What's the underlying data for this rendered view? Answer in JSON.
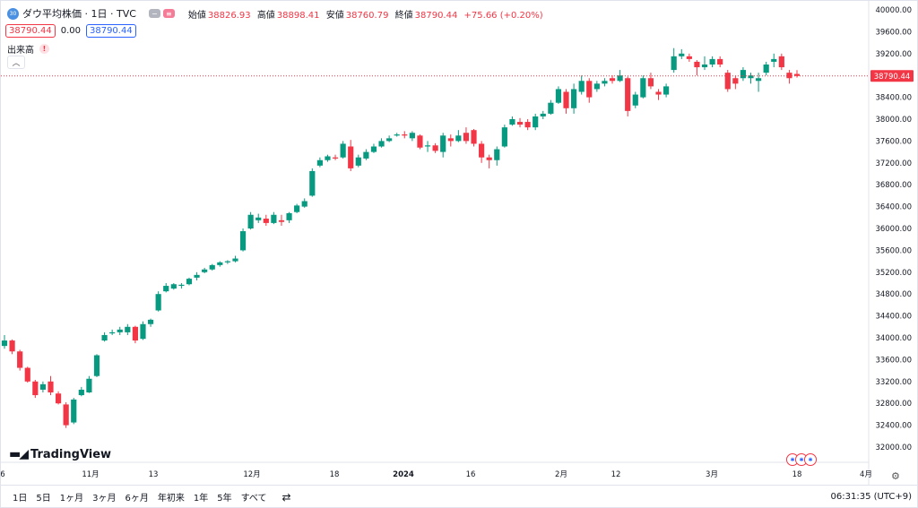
{
  "legend": {
    "symbol_badge": "30",
    "title": "ダウ平均株価 · 1日 · TVC",
    "ohlc": [
      {
        "label": "始値",
        "value": "38826.93"
      },
      {
        "label": "高値",
        "value": "38898.41"
      },
      {
        "label": "安値",
        "value": "38760.79"
      },
      {
        "label": "終値",
        "value": "38790.44"
      }
    ],
    "change": "+75.66 (+0.20%)",
    "sell_price": "38790.44",
    "spread": "0.00",
    "buy_price": "38790.44",
    "volume_label": "出来高",
    "volume_warning": "!"
  },
  "logo": {
    "text": "TradingView"
  },
  "price_axis": {
    "labels": [
      "40000.00",
      "39600.00",
      "39200.00",
      "38800.00",
      "38400.00",
      "38000.00",
      "37600.00",
      "37200.00",
      "36800.00",
      "36400.00",
      "36000.00",
      "35600.00",
      "35200.00",
      "34800.00",
      "34400.00",
      "34000.00",
      "33600.00",
      "33200.00",
      "32800.00",
      "32400.00",
      "32000.00"
    ],
    "last_price_label": "38790.44"
  },
  "time_axis": {
    "labels": [
      {
        "text": "6",
        "bold": false
      },
      {
        "text": "11月",
        "bold": false
      },
      {
        "text": "13",
        "bold": false
      },
      {
        "text": "12月",
        "bold": false
      },
      {
        "text": "18",
        "bold": false
      },
      {
        "text": "2024",
        "bold": true
      },
      {
        "text": "16",
        "bold": false
      },
      {
        "text": "2月",
        "bold": false
      },
      {
        "text": "12",
        "bold": false
      },
      {
        "text": "3月",
        "bold": false
      },
      {
        "text": "18",
        "bold": false
      },
      {
        "text": "4月",
        "bold": false
      }
    ]
  },
  "bottom_bar": {
    "ranges": [
      "1日",
      "5日",
      "1ヶ月",
      "3ヶ月",
      "6ヶ月",
      "年初来",
      "1年",
      "5年",
      "すべて"
    ],
    "clock": "06:31:35 (UTC+9)"
  },
  "colors": {
    "up": "#089981",
    "down": "#f23645",
    "price_line": "#f23645"
  },
  "chart_data": {
    "type": "candlestick",
    "title": "ダウ平均株価 · 1日 · TVC",
    "ylim": [
      31900,
      40100
    ],
    "y_ticks": [
      32000,
      32400,
      32800,
      33200,
      33600,
      34000,
      34400,
      34800,
      35200,
      35600,
      36000,
      36400,
      36800,
      37200,
      37600,
      38000,
      38400,
      38800,
      39200,
      39600,
      40000
    ],
    "last_price": 38790.44,
    "grid": false,
    "candles": [
      {
        "o": 33850,
        "h": 34050,
        "l": 33800,
        "c": 33950
      },
      {
        "o": 33950,
        "h": 33970,
        "l": 33700,
        "c": 33750
      },
      {
        "o": 33750,
        "h": 33780,
        "l": 33400,
        "c": 33450
      },
      {
        "o": 33450,
        "h": 33470,
        "l": 33180,
        "c": 33200
      },
      {
        "o": 33200,
        "h": 33230,
        "l": 32900,
        "c": 32950
      },
      {
        "o": 33050,
        "h": 33200,
        "l": 33000,
        "c": 33150
      },
      {
        "o": 33200,
        "h": 33300,
        "l": 32950,
        "c": 33000
      },
      {
        "o": 32980,
        "h": 33020,
        "l": 32780,
        "c": 32800
      },
      {
        "o": 32780,
        "h": 32820,
        "l": 32350,
        "c": 32400
      },
      {
        "o": 32450,
        "h": 32900,
        "l": 32420,
        "c": 32870
      },
      {
        "o": 32950,
        "h": 33100,
        "l": 32930,
        "c": 33050
      },
      {
        "o": 33000,
        "h": 33300,
        "l": 32990,
        "c": 33250
      },
      {
        "o": 33300,
        "h": 33700,
        "l": 33280,
        "c": 33680
      },
      {
        "o": 33950,
        "h": 34100,
        "l": 33930,
        "c": 34050
      },
      {
        "o": 34080,
        "h": 34150,
        "l": 34050,
        "c": 34100
      },
      {
        "o": 34100,
        "h": 34200,
        "l": 34050,
        "c": 34150
      },
      {
        "o": 34100,
        "h": 34250,
        "l": 34050,
        "c": 34200
      },
      {
        "o": 34200,
        "h": 34220,
        "l": 33900,
        "c": 33950
      },
      {
        "o": 33980,
        "h": 34300,
        "l": 33960,
        "c": 34250
      },
      {
        "o": 34250,
        "h": 34350,
        "l": 34200,
        "c": 34330
      },
      {
        "o": 34500,
        "h": 34850,
        "l": 34480,
        "c": 34800
      },
      {
        "o": 34850,
        "h": 35000,
        "l": 34830,
        "c": 34950
      },
      {
        "o": 34900,
        "h": 35000,
        "l": 34880,
        "c": 34980
      },
      {
        "o": 34950,
        "h": 35000,
        "l": 34900,
        "c": 34970
      },
      {
        "o": 34980,
        "h": 35100,
        "l": 34960,
        "c": 35080
      },
      {
        "o": 35100,
        "h": 35200,
        "l": 35050,
        "c": 35150
      },
      {
        "o": 35200,
        "h": 35280,
        "l": 35180,
        "c": 35250
      },
      {
        "o": 35250,
        "h": 35350,
        "l": 35230,
        "c": 35330
      },
      {
        "o": 35330,
        "h": 35400,
        "l": 35300,
        "c": 35380
      },
      {
        "o": 35380,
        "h": 35420,
        "l": 35350,
        "c": 35400
      },
      {
        "o": 35400,
        "h": 35500,
        "l": 35380,
        "c": 35450
      },
      {
        "o": 35600,
        "h": 36000,
        "l": 35580,
        "c": 35950
      },
      {
        "o": 36000,
        "h": 36300,
        "l": 35980,
        "c": 36250
      },
      {
        "o": 36150,
        "h": 36270,
        "l": 36100,
        "c": 36200
      },
      {
        "o": 36180,
        "h": 36250,
        "l": 36050,
        "c": 36100
      },
      {
        "o": 36100,
        "h": 36300,
        "l": 36080,
        "c": 36250
      },
      {
        "o": 36150,
        "h": 36250,
        "l": 36050,
        "c": 36120
      },
      {
        "o": 36150,
        "h": 36300,
        "l": 36100,
        "c": 36280
      },
      {
        "o": 36300,
        "h": 36450,
        "l": 36280,
        "c": 36420
      },
      {
        "o": 36400,
        "h": 36550,
        "l": 36380,
        "c": 36500
      },
      {
        "o": 36600,
        "h": 37100,
        "l": 36580,
        "c": 37050
      },
      {
        "o": 37150,
        "h": 37300,
        "l": 37120,
        "c": 37250
      },
      {
        "o": 37250,
        "h": 37350,
        "l": 37220,
        "c": 37320
      },
      {
        "o": 37300,
        "h": 37350,
        "l": 37250,
        "c": 37280
      },
      {
        "o": 37300,
        "h": 37600,
        "l": 37280,
        "c": 37550
      },
      {
        "o": 37500,
        "h": 37620,
        "l": 37050,
        "c": 37100
      },
      {
        "o": 37150,
        "h": 37350,
        "l": 37120,
        "c": 37300
      },
      {
        "o": 37280,
        "h": 37450,
        "l": 37250,
        "c": 37400
      },
      {
        "o": 37400,
        "h": 37550,
        "l": 37380,
        "c": 37500
      },
      {
        "o": 37500,
        "h": 37650,
        "l": 37480,
        "c": 37600
      },
      {
        "o": 37600,
        "h": 37700,
        "l": 37580,
        "c": 37650
      },
      {
        "o": 37700,
        "h": 37750,
        "l": 37680,
        "c": 37720
      },
      {
        "o": 37720,
        "h": 37780,
        "l": 37650,
        "c": 37700
      },
      {
        "o": 37650,
        "h": 37780,
        "l": 37600,
        "c": 37750
      },
      {
        "o": 37700,
        "h": 37720,
        "l": 37450,
        "c": 37480
      },
      {
        "o": 37500,
        "h": 37600,
        "l": 37400,
        "c": 37520
      },
      {
        "o": 37520,
        "h": 37560,
        "l": 37380,
        "c": 37420
      },
      {
        "o": 37400,
        "h": 37750,
        "l": 37300,
        "c": 37700
      },
      {
        "o": 37650,
        "h": 37720,
        "l": 37500,
        "c": 37600
      },
      {
        "o": 37600,
        "h": 37800,
        "l": 37580,
        "c": 37700
      },
      {
        "o": 37750,
        "h": 37850,
        "l": 37550,
        "c": 37600
      },
      {
        "o": 37800,
        "h": 37820,
        "l": 37500,
        "c": 37550
      },
      {
        "o": 37550,
        "h": 37600,
        "l": 37200,
        "c": 37300
      },
      {
        "o": 37300,
        "h": 37350,
        "l": 37100,
        "c": 37250
      },
      {
        "o": 37250,
        "h": 37500,
        "l": 37150,
        "c": 37450
      },
      {
        "o": 37500,
        "h": 37900,
        "l": 37480,
        "c": 37850
      },
      {
        "o": 37900,
        "h": 38050,
        "l": 37880,
        "c": 38000
      },
      {
        "o": 37950,
        "h": 38020,
        "l": 37850,
        "c": 37900
      },
      {
        "o": 37950,
        "h": 38000,
        "l": 37800,
        "c": 37850
      },
      {
        "o": 37850,
        "h": 38100,
        "l": 37800,
        "c": 38050
      },
      {
        "o": 38050,
        "h": 38150,
        "l": 38000,
        "c": 38100
      },
      {
        "o": 38100,
        "h": 38350,
        "l": 38080,
        "c": 38300
      },
      {
        "o": 38300,
        "h": 38600,
        "l": 38280,
        "c": 38550
      },
      {
        "o": 38500,
        "h": 38550,
        "l": 38100,
        "c": 38200
      },
      {
        "o": 38200,
        "h": 38650,
        "l": 38100,
        "c": 38550
      },
      {
        "o": 38500,
        "h": 38800,
        "l": 38450,
        "c": 38700
      },
      {
        "o": 38700,
        "h": 38750,
        "l": 38300,
        "c": 38400
      },
      {
        "o": 38550,
        "h": 38700,
        "l": 38500,
        "c": 38650
      },
      {
        "o": 38650,
        "h": 38750,
        "l": 38600,
        "c": 38700
      },
      {
        "o": 38750,
        "h": 38800,
        "l": 38650,
        "c": 38700
      },
      {
        "o": 38700,
        "h": 38900,
        "l": 38680,
        "c": 38800
      },
      {
        "o": 38750,
        "h": 38780,
        "l": 38050,
        "c": 38150
      },
      {
        "o": 38250,
        "h": 38500,
        "l": 38200,
        "c": 38450
      },
      {
        "o": 38400,
        "h": 38800,
        "l": 38380,
        "c": 38750
      },
      {
        "o": 38750,
        "h": 38850,
        "l": 38550,
        "c": 38600
      },
      {
        "o": 38500,
        "h": 38550,
        "l": 38350,
        "c": 38450
      },
      {
        "o": 38450,
        "h": 38650,
        "l": 38400,
        "c": 38600
      },
      {
        "o": 38900,
        "h": 39300,
        "l": 38850,
        "c": 39150
      },
      {
        "o": 39150,
        "h": 39280,
        "l": 39100,
        "c": 39200
      },
      {
        "o": 39150,
        "h": 39200,
        "l": 39050,
        "c": 39100
      },
      {
        "o": 39050,
        "h": 39080,
        "l": 38800,
        "c": 38950
      },
      {
        "o": 38950,
        "h": 39150,
        "l": 38900,
        "c": 39000
      },
      {
        "o": 39000,
        "h": 39150,
        "l": 38950,
        "c": 39100
      },
      {
        "o": 39100,
        "h": 39150,
        "l": 38950,
        "c": 39000
      },
      {
        "o": 38850,
        "h": 38900,
        "l": 38500,
        "c": 38550
      },
      {
        "o": 38750,
        "h": 38800,
        "l": 38550,
        "c": 38650
      },
      {
        "o": 38750,
        "h": 38950,
        "l": 38700,
        "c": 38900
      },
      {
        "o": 38750,
        "h": 38850,
        "l": 38650,
        "c": 38800
      },
      {
        "o": 38700,
        "h": 38850,
        "l": 38500,
        "c": 38750
      },
      {
        "o": 38850,
        "h": 39050,
        "l": 38800,
        "c": 39000
      },
      {
        "o": 39050,
        "h": 39200,
        "l": 38950,
        "c": 39100
      },
      {
        "o": 39150,
        "h": 39200,
        "l": 38900,
        "c": 38950
      },
      {
        "o": 38850,
        "h": 38900,
        "l": 38650,
        "c": 38750
      },
      {
        "o": 38826.93,
        "h": 38898.41,
        "l": 38760.79,
        "c": 38790.44
      }
    ]
  }
}
